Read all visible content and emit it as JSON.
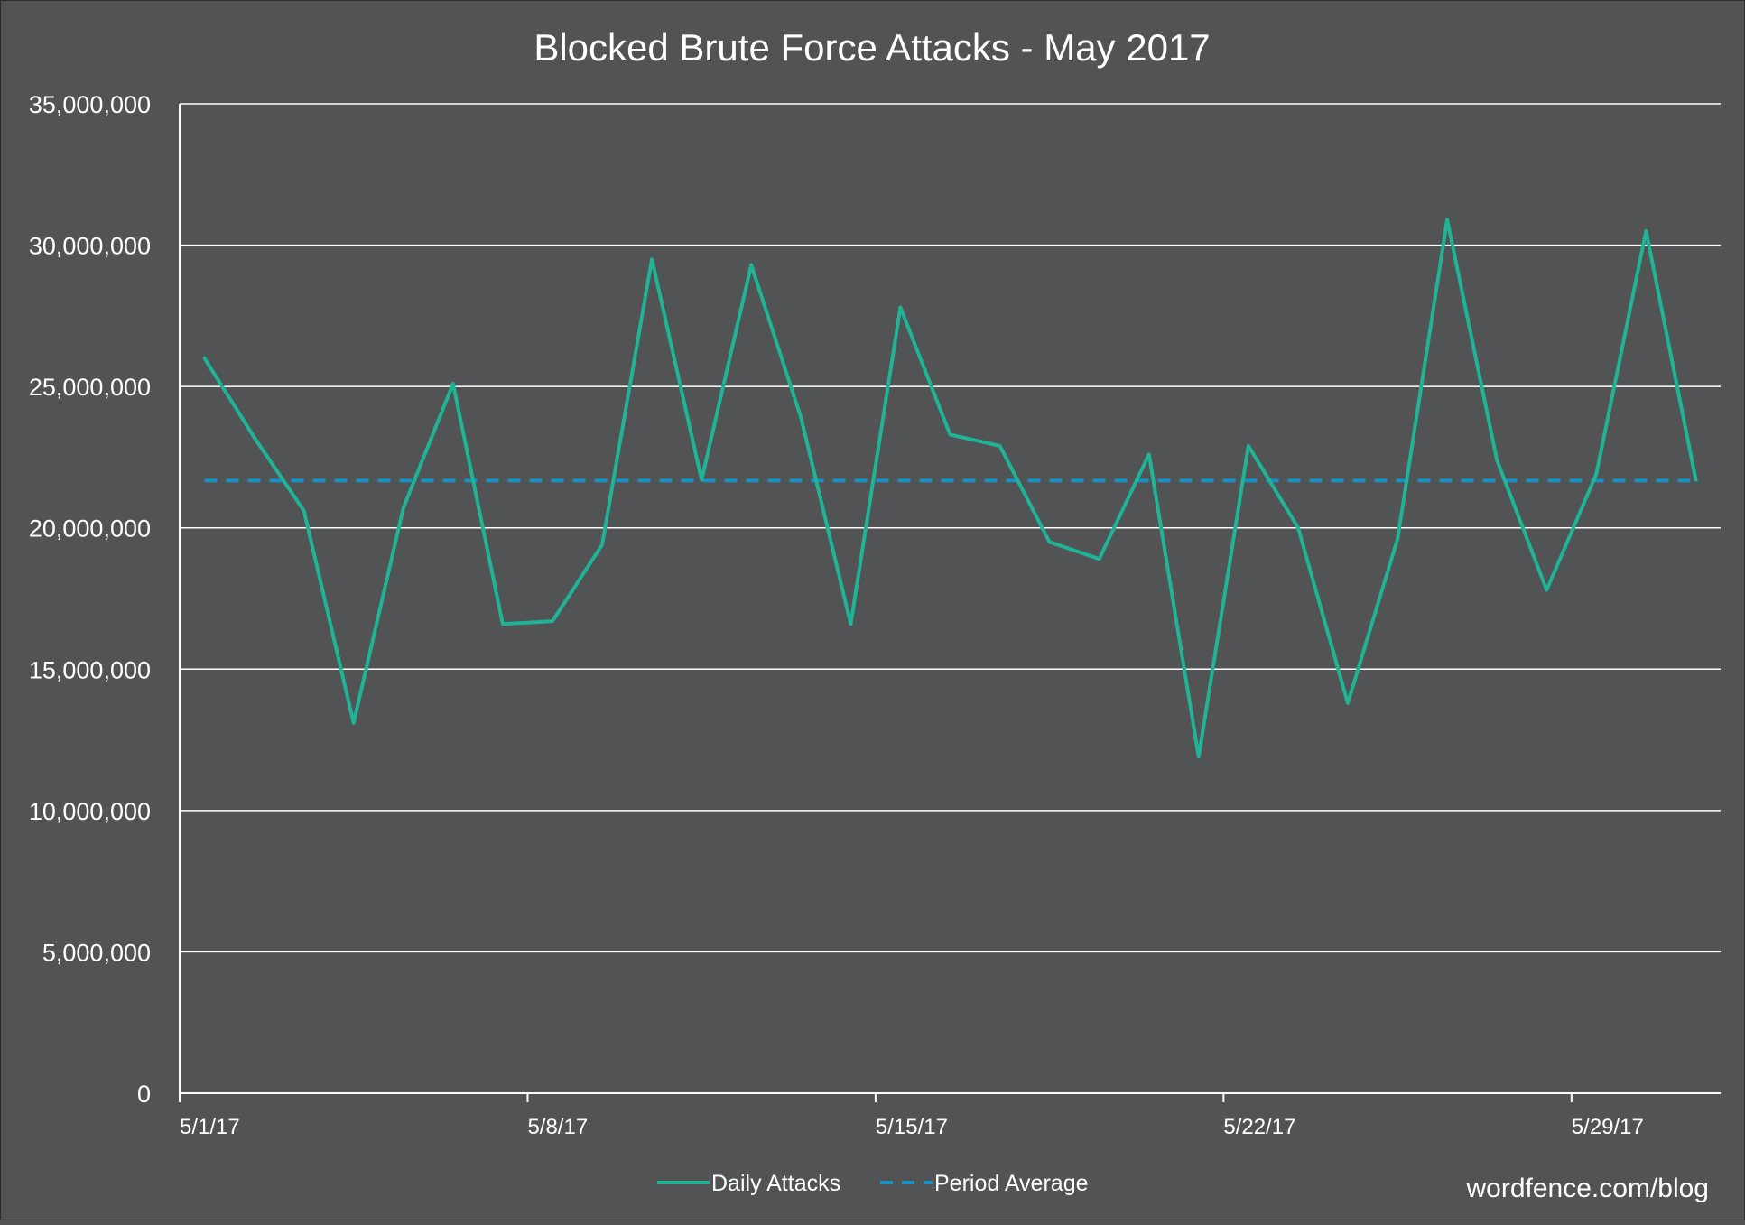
{
  "chart_data": {
    "type": "line",
    "title": "Blocked Brute Force Attacks - May 2017",
    "xlabel": "",
    "ylabel": "",
    "x": [
      "5/1/17",
      "5/2/17",
      "5/3/17",
      "5/4/17",
      "5/5/17",
      "5/6/17",
      "5/7/17",
      "5/8/17",
      "5/9/17",
      "5/10/17",
      "5/11/17",
      "5/12/17",
      "5/13/17",
      "5/14/17",
      "5/15/17",
      "5/16/17",
      "5/17/17",
      "5/18/17",
      "5/19/17",
      "5/20/17",
      "5/21/17",
      "5/22/17",
      "5/23/17",
      "5/24/17",
      "5/25/17",
      "5/26/17",
      "5/27/17",
      "5/28/17",
      "5/29/17",
      "5/30/17",
      "5/31/17"
    ],
    "x_tick_labels": [
      "5/1/17",
      "5/8/17",
      "5/15/17",
      "5/22/17",
      "5/29/17"
    ],
    "ylim": [
      0,
      35000000
    ],
    "y_tick_labels": [
      "0",
      "5,000,000",
      "10,000,000",
      "15,000,000",
      "20,000,000",
      "25,000,000",
      "30,000,000",
      "35,000,000"
    ],
    "y_ticks": [
      0,
      5000000,
      10000000,
      15000000,
      20000000,
      25000000,
      30000000,
      35000000
    ],
    "grid": "horizontal",
    "legend_position": "bottom",
    "series": [
      {
        "name": "Daily Attacks",
        "color": "#1fb496",
        "style": "solid",
        "values": [
          26000000,
          23200000,
          20600000,
          13100000,
          20700000,
          25100000,
          16600000,
          16700000,
          19400000,
          29500000,
          21700000,
          29300000,
          23900000,
          16600000,
          27800000,
          23300000,
          22900000,
          19500000,
          18900000,
          22600000,
          11900000,
          22900000,
          20000000,
          13800000,
          19600000,
          30900000,
          22400000,
          17800000,
          21900000,
          30500000,
          21700000
        ]
      },
      {
        "name": "Period Average",
        "color": "#1a8fc4",
        "style": "dashed",
        "values": [
          21670000,
          21670000,
          21670000,
          21670000,
          21670000,
          21670000,
          21670000,
          21670000,
          21670000,
          21670000,
          21670000,
          21670000,
          21670000,
          21670000,
          21670000,
          21670000,
          21670000,
          21670000,
          21670000,
          21670000,
          21670000,
          21670000,
          21670000,
          21670000,
          21670000,
          21670000,
          21670000,
          21670000,
          21670000,
          21670000,
          21670000
        ]
      }
    ]
  },
  "watermark": "wordfence.com/blog"
}
